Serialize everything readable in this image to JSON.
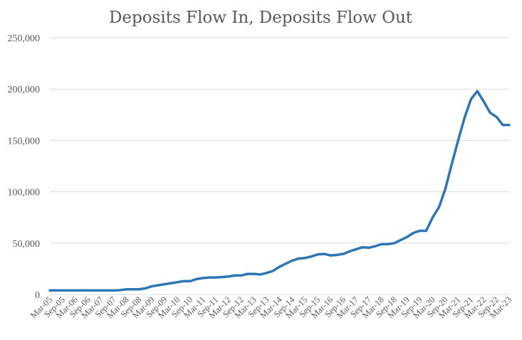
{
  "chart_data": {
    "type": "line",
    "title": "Deposits Flow In, Deposits Flow Out",
    "xlabel": "",
    "ylabel": "",
    "ylim": [
      0,
      250000
    ],
    "yticks": [
      0,
      50000,
      100000,
      150000,
      200000,
      250000
    ],
    "ytick_labels": [
      "0",
      "50,000",
      "100,000",
      "150,000",
      "200,000",
      "250,000"
    ],
    "grid": true,
    "legend": "none",
    "colors": {
      "series": "#2e75b6",
      "grid": "#d9d9d9",
      "text": "#595959"
    },
    "categories": [
      "Mar-05",
      "Sep-05",
      "Mar-06",
      "Sep-06",
      "Mar-07",
      "Sep-07",
      "Mar-08",
      "Sep-08",
      "Mar-09",
      "Sep-09",
      "Mar-10",
      "Sep-10",
      "Mar-11",
      "Sep-11",
      "Mar-12",
      "Sep-12",
      "Mar-13",
      "Sep-13",
      "Mar-14",
      "Sep-14",
      "Mar-15",
      "Sep-15",
      "Mar-16",
      "Sep-16",
      "Mar-17",
      "Sep-17",
      "Mar-18",
      "Sep-18",
      "Mar-19",
      "Sep-19",
      "Mar-20",
      "Sep-20",
      "Mar-21",
      "Sep-21",
      "Mar-22",
      "Sep-22",
      "Mar-23"
    ],
    "x": [
      "Mar-05",
      "Jun-05",
      "Sep-05",
      "Dec-05",
      "Mar-06",
      "Jun-06",
      "Sep-06",
      "Dec-06",
      "Mar-07",
      "Jun-07",
      "Sep-07",
      "Dec-07",
      "Mar-08",
      "Jun-08",
      "Sep-08",
      "Dec-08",
      "Mar-09",
      "Jun-09",
      "Sep-09",
      "Dec-09",
      "Mar-10",
      "Jun-10",
      "Sep-10",
      "Dec-10",
      "Mar-11",
      "Jun-11",
      "Sep-11",
      "Dec-11",
      "Mar-12",
      "Jun-12",
      "Sep-12",
      "Dec-12",
      "Mar-13",
      "Jun-13",
      "Sep-13",
      "Dec-13",
      "Mar-14",
      "Jun-14",
      "Sep-14",
      "Dec-14",
      "Mar-15",
      "Jun-15",
      "Sep-15",
      "Dec-15",
      "Mar-16",
      "Jun-16",
      "Sep-16",
      "Dec-16",
      "Mar-17",
      "Jun-17",
      "Sep-17",
      "Dec-17",
      "Mar-18",
      "Jun-18",
      "Sep-18",
      "Dec-18",
      "Mar-19",
      "Jun-19",
      "Sep-19",
      "Dec-19",
      "Mar-20",
      "Jun-20",
      "Sep-20",
      "Dec-20",
      "Mar-21",
      "Jun-21",
      "Sep-21",
      "Dec-21",
      "Mar-22",
      "Jun-22",
      "Sep-22",
      "Dec-22",
      "Mar-23"
    ],
    "series": [
      {
        "values": [
          4000,
          4000,
          4000,
          4000,
          4000,
          4000,
          4000,
          4000,
          4000,
          4000,
          4000,
          4200,
          5000,
          5000,
          5000,
          6000,
          8000,
          9000,
          10000,
          11000,
          12000,
          13000,
          13000,
          15000,
          16000,
          16500,
          16500,
          17000,
          17500,
          18500,
          18500,
          20000,
          20000,
          19500,
          21000,
          23000,
          27000,
          30000,
          33000,
          35000,
          35500,
          37000,
          39000,
          39500,
          38000,
          38500,
          39500,
          42000,
          44000,
          46000,
          45500,
          47000,
          49000,
          49000,
          50000,
          53000,
          56000,
          60000,
          62000,
          62000,
          75000,
          85000,
          103000,
          127000,
          150000,
          172000,
          190000,
          198000,
          188000,
          177000,
          173000,
          165000,
          165000
        ]
      }
    ]
  }
}
